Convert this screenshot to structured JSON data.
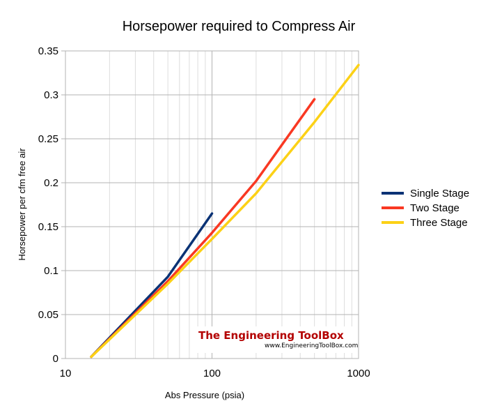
{
  "chart_data": {
    "type": "line",
    "title": "Horsepower required to Compress Air",
    "xlabel": "Abs Pressure (psia)",
    "ylabel": "Horsepower per cfm free air",
    "xscale": "log",
    "xlim": [
      10,
      1000
    ],
    "ylim": [
      0,
      0.35
    ],
    "x_ticks": [
      "10",
      "100",
      "1000"
    ],
    "y_ticks": [
      "0",
      "0.05",
      "0.1",
      "0.15",
      "0.2",
      "0.25",
      "0.3",
      "0.35"
    ],
    "grid": true,
    "legend_position": "right",
    "series": [
      {
        "name": "Single Stage",
        "color": "#0a3275",
        "x": [
          15,
          50,
          100
        ],
        "values": [
          0.002,
          0.093,
          0.165
        ]
      },
      {
        "name": "Two Stage",
        "color": "#f93822",
        "x": [
          15,
          50,
          100,
          200,
          500
        ],
        "values": [
          0.002,
          0.088,
          0.143,
          0.202,
          0.295
        ]
      },
      {
        "name": "Three Stage",
        "color": "#fcd116",
        "x": [
          15,
          50,
          100,
          200,
          500,
          1000
        ],
        "values": [
          0.002,
          0.085,
          0.136,
          0.188,
          0.269,
          0.334
        ]
      }
    ]
  },
  "watermark": {
    "title": "The Engineering ToolBox",
    "url": "www.EngineeringToolBox.com"
  }
}
